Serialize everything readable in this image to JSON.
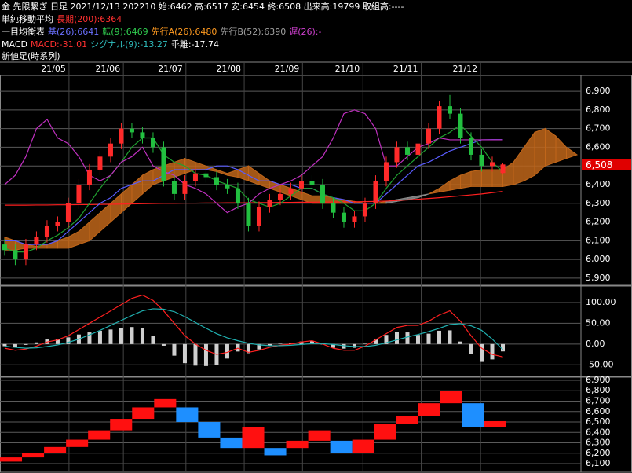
{
  "header": [
    [
      {
        "text": "金 先限繋ぎ 日足 2021/12/13 202210 始:6462 高:6517 安:6454 終:6508 出来高:19799 取組高:----",
        "color": "#ffffff"
      }
    ],
    [
      {
        "text": "単純移動平均",
        "color": "#ffffff"
      },
      {
        "text": "長期(200):6364",
        "color": "#ff3030"
      }
    ],
    [
      {
        "text": "一目均衡表",
        "color": "#ffffff"
      },
      {
        "text": "基(26):6641",
        "color": "#6a70ff"
      },
      {
        "text": "転(9):6469",
        "color": "#30d050"
      },
      {
        "text": "先行A(26):6480",
        "color": "#ff9a20"
      },
      {
        "text": "先行B(52):6390",
        "color": "#a0a0a0"
      },
      {
        "text": "遅(26):-",
        "color": "#d040d0"
      }
    ],
    [
      {
        "text": "MACD",
        "color": "#ffffff"
      },
      {
        "text": "MACD:-31.01",
        "color": "#ff3030"
      },
      {
        "text": "シグナル(9):-13.27",
        "color": "#30c0c0"
      },
      {
        "text": "乖離:-17.74",
        "color": "#ffffff"
      }
    ],
    [
      {
        "text": "新値足(時系列)",
        "color": "#ffffff"
      }
    ]
  ],
  "chart_data": [
    {
      "type": "candlestick",
      "x": [
        0,
        1,
        2,
        3,
        4,
        5,
        6,
        7,
        8,
        9,
        10,
        11,
        12,
        13,
        14,
        15,
        16,
        17,
        18,
        19,
        20,
        21,
        22,
        23,
        24,
        25,
        26,
        27,
        28,
        29,
        30,
        31,
        32,
        33,
        34,
        35,
        36,
        37,
        38,
        39,
        40,
        41,
        42,
        43,
        44,
        45,
        46,
        47,
        48,
        49,
        50,
        51,
        52,
        53,
        54
      ],
      "xlim": [
        -0.44,
        54.37
      ],
      "xticks": [
        {
          "value": 6.07,
          "label": "21/05"
        },
        {
          "value": 11.2,
          "label": "21/06"
        },
        {
          "value": 17.1,
          "label": "21/07"
        },
        {
          "value": 22.6,
          "label": "21/08"
        },
        {
          "value": 28.1,
          "label": "21/09"
        },
        {
          "value": 33.8,
          "label": "21/10"
        },
        {
          "value": 39.3,
          "label": "21/11"
        },
        {
          "value": 44.9,
          "label": "21/12"
        }
      ],
      "ylim": [
        5866,
        6976
      ],
      "yticks": [
        {
          "value": 5900,
          "label": "5,900"
        },
        {
          "value": 6000,
          "label": "6,000"
        },
        {
          "value": 6100,
          "label": "6,100"
        },
        {
          "value": 6200,
          "label": "6,200"
        },
        {
          "value": 6300,
          "label": "6,300"
        },
        {
          "value": 6400,
          "label": "6,400"
        },
        {
          "value": 6500,
          "label": "6,500"
        },
        {
          "value": 6600,
          "label": "6,600"
        },
        {
          "value": 6700,
          "label": "6,700"
        },
        {
          "value": 6800,
          "label": "6,800"
        },
        {
          "value": 6900,
          "label": "6,900"
        }
      ],
      "grid": true,
      "up_color": "#ff2a2a",
      "down_color": "#22c040",
      "open": [
        6080,
        6050,
        6000,
        6080,
        6120,
        6180,
        6200,
        6300,
        6400,
        6480,
        6550,
        6620,
        6700,
        6680,
        6650,
        6600,
        6420,
        6350,
        6420,
        6460,
        6440,
        6400,
        6380,
        6300,
        6180,
        6280,
        6320,
        6350,
        6380,
        6420,
        6400,
        6300,
        6250,
        6200,
        6230,
        6300,
        6420,
        6520,
        6600,
        6560,
        6620,
        6700,
        6820,
        6780,
        6650,
        6560,
        6500,
        6462,
        null,
        null,
        null,
        null,
        null,
        null,
        null
      ],
      "high": [
        6110,
        6080,
        6110,
        6150,
        6210,
        6230,
        6330,
        6430,
        6510,
        6580,
        6650,
        6730,
        6730,
        6710,
        6680,
        6630,
        6450,
        6450,
        6490,
        6490,
        6470,
        6430,
        6410,
        6330,
        6310,
        6350,
        6380,
        6410,
        6450,
        6450,
        6430,
        6330,
        6280,
        6260,
        6330,
        6450,
        6550,
        6630,
        6630,
        6650,
        6730,
        6850,
        6880,
        6810,
        6680,
        6590,
        6550,
        6517,
        null,
        null,
        null,
        null,
        null,
        null,
        null
      ],
      "low": [
        6020,
        5970,
        5970,
        6050,
        6090,
        6150,
        6170,
        6270,
        6370,
        6450,
        6520,
        6590,
        6650,
        6620,
        6570,
        6390,
        6320,
        6320,
        6390,
        6410,
        6370,
        6350,
        6270,
        6150,
        6150,
        6250,
        6290,
        6320,
        6350,
        6370,
        6270,
        6220,
        6170,
        6170,
        6200,
        6270,
        6390,
        6490,
        6530,
        6530,
        6590,
        6670,
        6750,
        6620,
        6530,
        6470,
        6470,
        6454,
        null,
        null,
        null,
        null,
        null,
        null,
        null
      ],
      "close": [
        6050,
        6000,
        6080,
        6120,
        6180,
        6200,
        6300,
        6400,
        6480,
        6550,
        6620,
        6700,
        6680,
        6650,
        6600,
        6420,
        6350,
        6420,
        6460,
        6440,
        6400,
        6380,
        6300,
        6180,
        6280,
        6320,
        6350,
        6380,
        6420,
        6400,
        6300,
        6250,
        6200,
        6230,
        6300,
        6420,
        6520,
        6600,
        6560,
        6620,
        6700,
        6820,
        6780,
        6650,
        6560,
        6500,
        6520,
        6508,
        null,
        null,
        null,
        null,
        null,
        null,
        null
      ],
      "current_price": {
        "value": 6508,
        "label": "6,508"
      },
      "cloud": {
        "up_color": "#c0661a",
        "down_color": "#8c8c8c",
        "a": [
          6120,
          6100,
          6080,
          6070,
          6080,
          6100,
          6120,
          6150,
          6200,
          6250,
          6300,
          6350,
          6400,
          6450,
          6480,
          6500,
          6520,
          6540,
          6520,
          6500,
          6480,
          6460,
          6480,
          6500,
          6460,
          6420,
          6400,
          6380,
          6360,
          6340,
          6340,
          6330,
          6320,
          6310,
          6300,
          6300,
          6300,
          6310,
          6320,
          6330,
          6350,
          6380,
          6420,
          6450,
          6470,
          6480,
          6480,
          6480,
          6520,
          6600,
          6680,
          6700,
          6660,
          6600,
          6560
        ],
        "b": [
          6050,
          6050,
          6060,
          6060,
          6060,
          6060,
          6060,
          6080,
          6100,
          6150,
          6200,
          6250,
          6300,
          6350,
          6400,
          6420,
          6440,
          6460,
          6480,
          6480,
          6470,
          6450,
          6440,
          6420,
          6400,
          6380,
          6360,
          6340,
          6320,
          6300,
          6300,
          6300,
          6300,
          6300,
          6300,
          6300,
          6310,
          6320,
          6330,
          6340,
          6350,
          6360,
          6370,
          6380,
          6390,
          6390,
          6390,
          6390,
          6400,
          6420,
          6450,
          6500,
          6520,
          6540,
          6560
        ]
      },
      "lines": [
        {
          "color": "#ff2020",
          "values": [
            6290,
            6290,
            6290,
            6291,
            6291,
            6292,
            6292,
            6293,
            6293,
            6294,
            6295,
            6296,
            6297,
            6298,
            6299,
            6300,
            6300,
            6301,
            6301,
            6302,
            6302,
            6303,
            6303,
            6303,
            6304,
            6304,
            6305,
            6305,
            6306,
            6306,
            6307,
            6307,
            6308,
            6308,
            6309,
            6310,
            6312,
            6315,
            6318,
            6322,
            6326,
            6330,
            6335,
            6340,
            6345,
            6350,
            6357,
            6364,
            null,
            null,
            null,
            null,
            null,
            null,
            null
          ]
        },
        {
          "color": "#5a5cff",
          "values": [
            6100,
            6100,
            6080,
            6080,
            6080,
            6100,
            6150,
            6200,
            6250,
            6300,
            6330,
            6380,
            6400,
            6420,
            6420,
            6450,
            6480,
            6480,
            6480,
            6480,
            6500,
            6500,
            6480,
            6450,
            6420,
            6420,
            6400,
            6400,
            6380,
            6380,
            6350,
            6330,
            6320,
            6300,
            6300,
            6300,
            6350,
            6400,
            6450,
            6500,
            6520,
            6550,
            6580,
            6600,
            6620,
            6640,
            6641,
            6641,
            null,
            null,
            null,
            null,
            null,
            null,
            null
          ]
        },
        {
          "color": "#20a030",
          "values": [
            6060,
            6040,
            6040,
            6060,
            6100,
            6130,
            6170,
            6220,
            6300,
            6380,
            6450,
            6520,
            6600,
            6650,
            6650,
            6560,
            6520,
            6500,
            6460,
            6450,
            6420,
            6400,
            6380,
            6320,
            6300,
            6280,
            6300,
            6340,
            6380,
            6380,
            6350,
            6330,
            6300,
            6260,
            6260,
            6300,
            6380,
            6450,
            6500,
            6550,
            6600,
            6650,
            6680,
            6720,
            6660,
            6600,
            6520,
            6469,
            null,
            null,
            null,
            null,
            null,
            null,
            null
          ]
        },
        {
          "color": "#c030c0",
          "values": [
            6400,
            6450,
            6550,
            6700,
            6750,
            6650,
            6620,
            6550,
            6450,
            6420,
            6450,
            6520,
            6550,
            6600,
            6500,
            6470,
            6450,
            6400,
            6380,
            6350,
            6300,
            6250,
            6280,
            6300,
            6350,
            6380,
            6400,
            6420,
            6450,
            6500,
            6550,
            6650,
            6780,
            6800,
            6780,
            6700,
            6500,
            6500,
            6550,
            6600,
            6620,
            6650,
            6640,
            6640,
            6640,
            6640,
            6640,
            6640,
            null,
            null,
            null,
            null,
            null,
            null,
            null
          ]
        }
      ]
    },
    {
      "type": "macd",
      "x": [
        0,
        1,
        2,
        3,
        4,
        5,
        6,
        7,
        8,
        9,
        10,
        11,
        12,
        13,
        14,
        15,
        16,
        17,
        18,
        19,
        20,
        21,
        22,
        23,
        24,
        25,
        26,
        27,
        28,
        29,
        30,
        31,
        32,
        33,
        34,
        35,
        36,
        37,
        38,
        39,
        40,
        41,
        42,
        43,
        44,
        45,
        46,
        47
      ],
      "xlim": [
        -0.44,
        54.37
      ],
      "ylim": [
        -76,
        136
      ],
      "yticks": [
        {
          "value": -50,
          "label": "-50.00"
        },
        {
          "value": 0,
          "label": "0.00"
        },
        {
          "value": 50,
          "label": "50.00"
        },
        {
          "value": 100,
          "label": "100.00"
        }
      ],
      "grid": true,
      "histogram": {
        "color": "#cfcfcf",
        "values": [
          -5,
          -7,
          -2,
          4,
          11,
          12,
          16,
          23,
          28,
          32,
          35,
          38,
          41,
          38,
          20,
          -4,
          -28,
          -46,
          -52,
          -53,
          -50,
          -35,
          -18,
          -22,
          -13,
          -4,
          1,
          3,
          6,
          7,
          -1,
          -9,
          -11,
          -9,
          1,
          13,
          22,
          30,
          28,
          22,
          25,
          32,
          33,
          6,
          -24,
          -43,
          -37,
          -17.74
        ]
      },
      "series": [
        {
          "color": "#ff2020",
          "values": [
            -10,
            -15,
            -12,
            -5,
            5,
            10,
            20,
            35,
            50,
            65,
            80,
            95,
            110,
            118,
            105,
            80,
            50,
            20,
            0,
            -15,
            -25,
            -20,
            -10,
            -20,
            -15,
            -8,
            -3,
            0,
            5,
            8,
            0,
            -10,
            -15,
            -15,
            -5,
            10,
            25,
            40,
            45,
            45,
            55,
            70,
            80,
            55,
            20,
            -10,
            -25,
            -31.01
          ]
        },
        {
          "color": "#20b0b0",
          "values": [
            -5,
            -8,
            -10,
            -9,
            -6,
            -2,
            4,
            12,
            22,
            33,
            45,
            57,
            69,
            80,
            85,
            84,
            78,
            66,
            52,
            38,
            25,
            15,
            8,
            2,
            -2,
            -4,
            -4,
            -3,
            -1,
            1,
            1,
            -1,
            -4,
            -6,
            -6,
            -3,
            3,
            10,
            17,
            23,
            30,
            38,
            47,
            49,
            44,
            33,
            12,
            -13.27
          ]
        }
      ]
    },
    {
      "type": "line_break",
      "ylim": [
        6025,
        6915
      ],
      "yticks": [
        {
          "value": 6100,
          "label": "6,100"
        },
        {
          "value": 6200,
          "label": "6,200"
        },
        {
          "value": 6300,
          "label": "6,300"
        },
        {
          "value": 6400,
          "label": "6,400"
        },
        {
          "value": 6500,
          "label": "6,500"
        },
        {
          "value": 6600,
          "label": "6,600"
        },
        {
          "value": 6700,
          "label": "6,700"
        },
        {
          "value": 6800,
          "label": "6,800"
        },
        {
          "value": 6900,
          "label": "6,900"
        }
      ],
      "grid": true,
      "up_color": "#ff1010",
      "down_color": "#1e8fff",
      "open": [
        6120,
        6160,
        6200,
        6260,
        6330,
        6420,
        6530,
        6640,
        6640,
        6500,
        6350,
        6250,
        6250,
        6250,
        6320,
        6320,
        6200,
        6330,
        6480,
        6560,
        6680,
        6680,
        6450
      ],
      "close": [
        6160,
        6200,
        6260,
        6330,
        6420,
        6530,
        6640,
        6720,
        6500,
        6350,
        6250,
        6450,
        6180,
        6320,
        6420,
        6200,
        6330,
        6480,
        6560,
        6680,
        6800,
        6450,
        6508
      ]
    }
  ]
}
